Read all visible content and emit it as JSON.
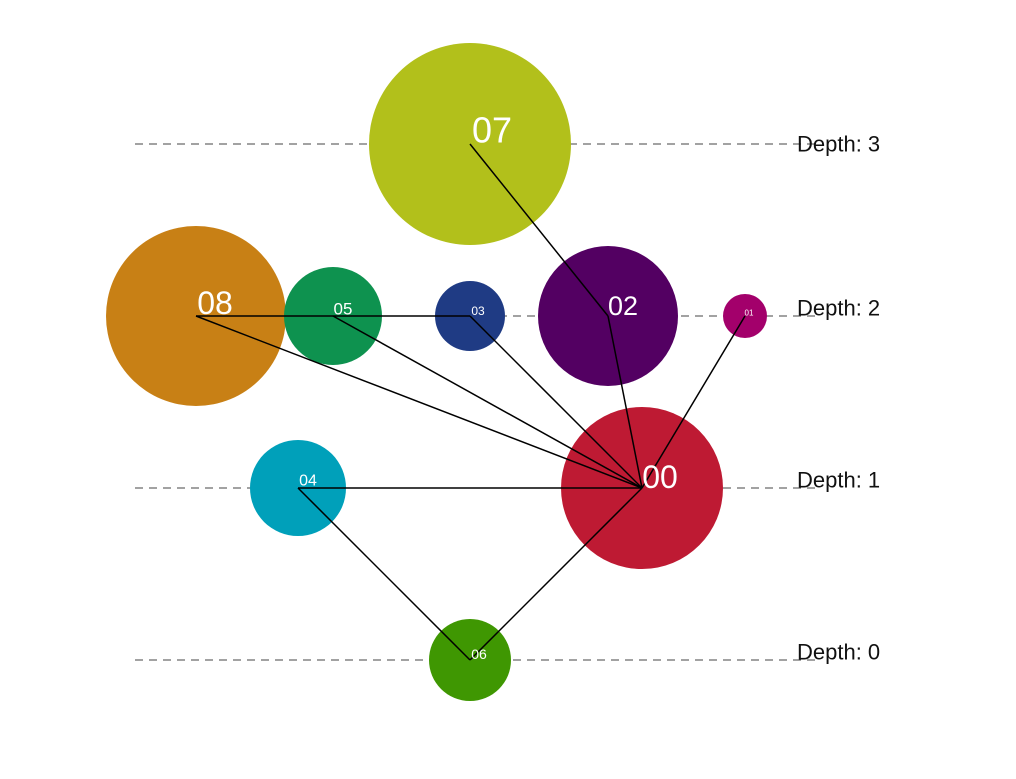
{
  "levels": [
    {
      "id": "d3",
      "label": "Depth: 3"
    },
    {
      "id": "d2",
      "label": "Depth: 2"
    },
    {
      "id": "d1",
      "label": "Depth: 1"
    },
    {
      "id": "d0",
      "label": "Depth: 0"
    }
  ],
  "nodes": [
    {
      "id": "00",
      "label": "00",
      "color": "#be1a33"
    },
    {
      "id": "01",
      "label": "01",
      "color": "#a3006b"
    },
    {
      "id": "02",
      "label": "02",
      "color": "#530062"
    },
    {
      "id": "03",
      "label": "03",
      "color": "#1f3b84"
    },
    {
      "id": "04",
      "label": "04",
      "color": "#00a0ba"
    },
    {
      "id": "05",
      "label": "05",
      "color": "#0e924f"
    },
    {
      "id": "06",
      "label": "06",
      "color": "#3f9702"
    },
    {
      "id": "07",
      "label": "07",
      "color": "#b2c01b"
    },
    {
      "id": "08",
      "label": "08",
      "color": "#c88015"
    }
  ],
  "edges": [
    [
      "00",
      "01"
    ],
    [
      "00",
      "02"
    ],
    [
      "00",
      "03"
    ],
    [
      "00",
      "04"
    ],
    [
      "00",
      "05"
    ],
    [
      "00",
      "06"
    ],
    [
      "00",
      "08"
    ],
    [
      "02",
      "07"
    ],
    [
      "04",
      "06"
    ],
    [
      "05",
      "08"
    ],
    [
      "03",
      "05"
    ]
  ]
}
